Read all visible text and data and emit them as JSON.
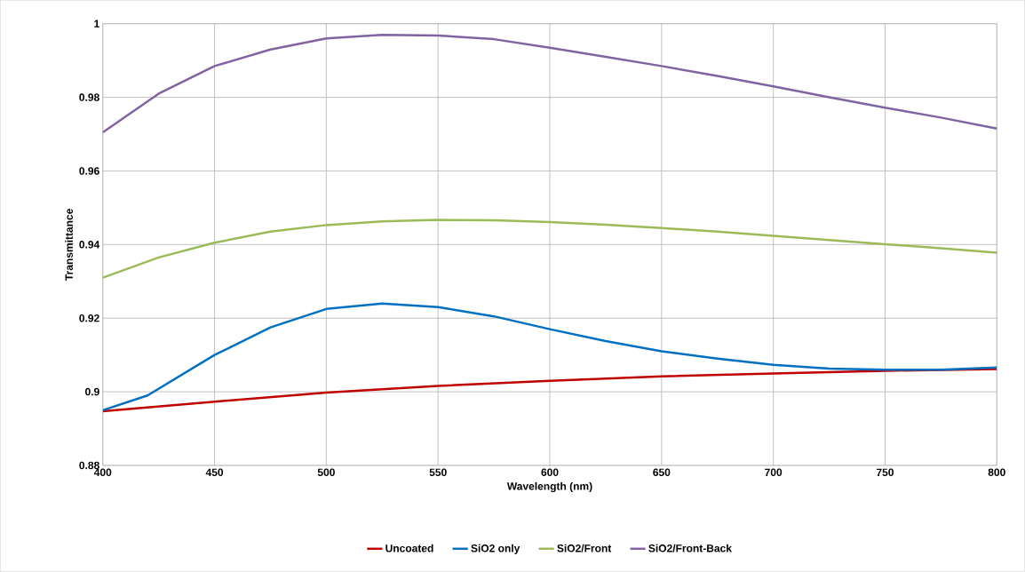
{
  "chart_data": {
    "type": "line",
    "xlabel": "Wavelength (nm)",
    "ylabel": "Transmittance",
    "xlim": [
      400,
      800
    ],
    "xticks": [
      400,
      450,
      500,
      550,
      600,
      650,
      700,
      750,
      800
    ],
    "ylim": [
      0.88,
      1
    ],
    "yticks": [
      0.88,
      0.9,
      0.92,
      0.94,
      0.96,
      0.98,
      1
    ],
    "grid": true,
    "legend": "bottom",
    "marker": "none",
    "line_style": "solid",
    "series": [
      {
        "name": "Uncoated",
        "color": "#c00000",
        "x": [
          400,
          450,
          500,
          550,
          600,
          650,
          700,
          750,
          800
        ],
        "values": [
          0.8947,
          0.8973,
          0.8998,
          0.9016,
          0.903,
          0.9042,
          0.905,
          0.9057,
          0.9062
        ]
      },
      {
        "name": "SiO2 only",
        "color": "#0070c0",
        "x": [
          400,
          420,
          450,
          475,
          500,
          525,
          550,
          575,
          600,
          625,
          650,
          675,
          700,
          725,
          750,
          775,
          800
        ],
        "values": [
          0.895,
          0.899,
          0.91,
          0.9175,
          0.9225,
          0.924,
          0.923,
          0.9205,
          0.917,
          0.9138,
          0.911,
          0.909,
          0.9073,
          0.9063,
          0.906,
          0.906,
          0.9066
        ]
      },
      {
        "name": "SiO2/Front",
        "color": "#9bbb59",
        "x": [
          400,
          425,
          450,
          475,
          500,
          525,
          550,
          575,
          600,
          625,
          650,
          675,
          700,
          725,
          750,
          775,
          800
        ],
        "values": [
          0.931,
          0.9365,
          0.9405,
          0.9435,
          0.9453,
          0.9463,
          0.9467,
          0.9466,
          0.9461,
          0.9454,
          0.9445,
          0.9435,
          0.9424,
          0.9412,
          0.9401,
          0.939,
          0.9378
        ]
      },
      {
        "name": "SiO2/Front-Back",
        "color": "#8064a2",
        "x": [
          400,
          425,
          450,
          475,
          500,
          525,
          550,
          575,
          600,
          625,
          650,
          675,
          700,
          725,
          750,
          775,
          800
        ],
        "values": [
          0.9705,
          0.981,
          0.9885,
          0.993,
          0.996,
          0.997,
          0.9968,
          0.9958,
          0.9935,
          0.991,
          0.9885,
          0.9858,
          0.983,
          0.98,
          0.9772,
          0.9745,
          0.9715
        ]
      }
    ]
  }
}
